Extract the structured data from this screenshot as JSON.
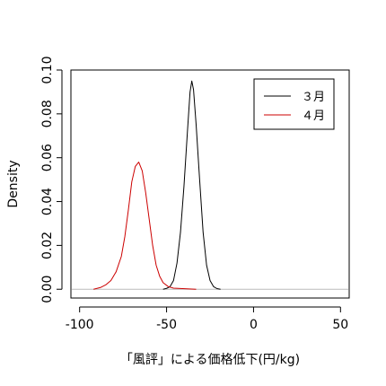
{
  "chart_data": {
    "type": "line",
    "title": "",
    "xlabel": "「風評」による価格低下(円/kg)",
    "ylabel": "Density",
    "xlim": [
      -105,
      55
    ],
    "ylim": [
      -0.004,
      0.1
    ],
    "x_ticks": [
      {
        "value": -100,
        "label": "-100"
      },
      {
        "value": -50,
        "label": "-50"
      },
      {
        "value": 0,
        "label": "0"
      },
      {
        "value": 50,
        "label": "50"
      }
    ],
    "y_ticks": [
      {
        "value": 0,
        "label": "0.00"
      },
      {
        "value": 0.02,
        "label": "0.02"
      },
      {
        "value": 0.04,
        "label": "0.04"
      },
      {
        "value": 0.06,
        "label": "0.06"
      },
      {
        "value": 0.08,
        "label": "0.08"
      },
      {
        "value": 0.1,
        "label": "0.10"
      }
    ],
    "grid": false,
    "baseline": {
      "y": 0,
      "color": "#bbbbbb"
    },
    "legend": {
      "position": "top-right"
    },
    "series": [
      {
        "name": "３月",
        "color": "#000000",
        "points": [
          [
            -52,
            0.0
          ],
          [
            -50,
            0.0004
          ],
          [
            -48,
            0.0012
          ],
          [
            -46,
            0.004
          ],
          [
            -44,
            0.012
          ],
          [
            -42,
            0.026
          ],
          [
            -40,
            0.047
          ],
          [
            -38,
            0.072
          ],
          [
            -36.5,
            0.09
          ],
          [
            -35.5,
            0.095
          ],
          [
            -34.5,
            0.091
          ],
          [
            -33,
            0.075
          ],
          [
            -31,
            0.05
          ],
          [
            -29,
            0.026
          ],
          [
            -27,
            0.011
          ],
          [
            -25,
            0.004
          ],
          [
            -23,
            0.0012
          ],
          [
            -21,
            0.0003
          ],
          [
            -19,
            0.0
          ]
        ]
      },
      {
        "name": "４月",
        "color": "#cc0000",
        "points": [
          [
            -92,
            0.0
          ],
          [
            -88,
            0.0008
          ],
          [
            -85,
            0.002
          ],
          [
            -82,
            0.004
          ],
          [
            -79,
            0.008
          ],
          [
            -76,
            0.015
          ],
          [
            -74,
            0.024
          ],
          [
            -72,
            0.036
          ],
          [
            -70,
            0.049
          ],
          [
            -68,
            0.056
          ],
          [
            -66,
            0.058
          ],
          [
            -64,
            0.054
          ],
          [
            -62,
            0.044
          ],
          [
            -60,
            0.032
          ],
          [
            -58,
            0.02
          ],
          [
            -56,
            0.011
          ],
          [
            -54,
            0.006
          ],
          [
            -52,
            0.003
          ],
          [
            -49,
            0.0012
          ],
          [
            -46,
            0.0005
          ],
          [
            -33,
            0.0
          ]
        ]
      }
    ]
  }
}
